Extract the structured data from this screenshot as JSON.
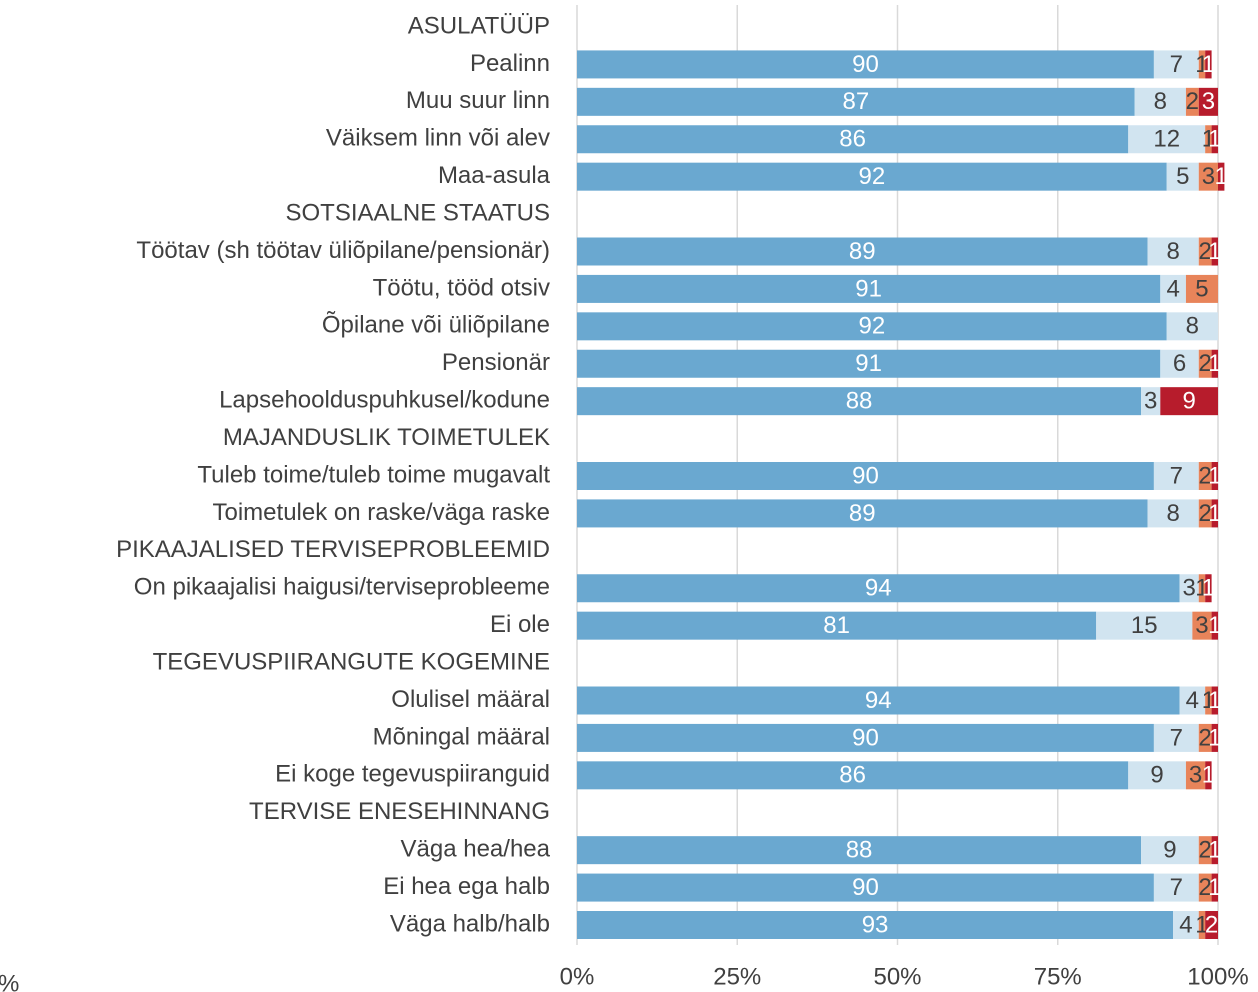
{
  "chart_data": {
    "type": "stacked-bar-horizontal",
    "categories": [
      "ASULATÜÜP",
      "Pealinn",
      "Muu suur linn",
      "Väiksem linn või alev",
      "Maa-asula",
      "SOTSIAALNE STAATUS",
      "Töötav (sh töötav üliõpilane/pensionär)",
      "Töötu, tööd otsiv",
      "Õpilane või üliõpilane",
      "Pensionär",
      "Lapsehoolduspuhkusel/kodune",
      "MAJANDUSLIK TOIMETULEK",
      "Tuleb toime/tuleb toime mugavalt",
      "Toimetulek on raske/väga raske",
      "PIKAAJALISED TERVISEPROBLEEMID",
      "On pikaajalisi haigusi/terviseprobleeme",
      "Ei ole",
      "TEGEVUSPIIRANGUTE KOGEMINE",
      "Olulisel määral",
      "Mõningal määral",
      "Ei koge tegevuspiiranguid",
      "TERVISE ENESEHINNANG",
      "Väga hea/hea",
      "Ei hea ega halb",
      "Väga halb/halb"
    ],
    "series": [
      {
        "color": "#6aa8d0",
        "values": [
          null,
          90,
          87,
          86,
          92,
          null,
          89,
          91,
          92,
          91,
          88,
          null,
          90,
          89,
          null,
          94,
          81,
          null,
          94,
          90,
          86,
          null,
          88,
          90,
          93
        ]
      },
      {
        "color": "#d1e4f0",
        "values": [
          null,
          7,
          8,
          12,
          5,
          null,
          8,
          4,
          8,
          6,
          3,
          null,
          7,
          8,
          null,
          3,
          15,
          null,
          4,
          7,
          9,
          null,
          9,
          7,
          4
        ]
      },
      {
        "color": "#e8845a",
        "values": [
          null,
          1,
          2,
          1,
          3,
          null,
          2,
          5,
          null,
          2,
          null,
          null,
          2,
          2,
          null,
          1,
          3,
          null,
          1,
          2,
          3,
          null,
          2,
          2,
          1
        ]
      },
      {
        "color": "#b71c2c",
        "values": [
          null,
          1,
          3,
          1,
          1,
          null,
          1,
          null,
          null,
          1,
          9,
          null,
          1,
          1,
          null,
          1,
          1,
          null,
          1,
          1,
          1,
          null,
          1,
          1,
          2
        ]
      }
    ],
    "xlim": [
      0,
      100
    ],
    "xticks": [
      {
        "value": 0,
        "label": "0%"
      },
      {
        "value": 25,
        "label": "25%"
      },
      {
        "value": 50,
        "label": "50%"
      },
      {
        "value": 75,
        "label": "75%"
      },
      {
        "value": 100,
        "label": "100%"
      }
    ],
    "x_label": "%",
    "grid": true
  }
}
